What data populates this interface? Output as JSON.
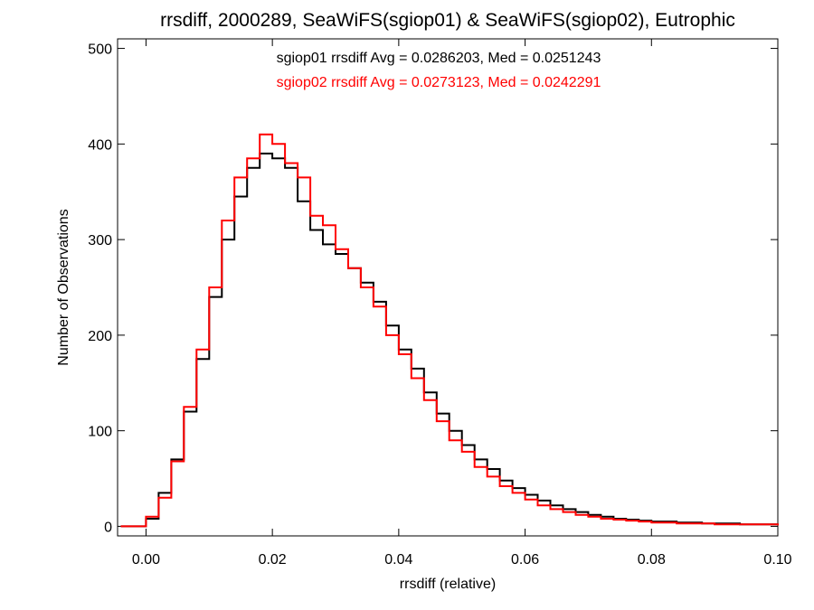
{
  "chart_data": {
    "type": "line",
    "step": true,
    "title": "rrsdiff, 2000289, SeaWiFS(sgiop01) & SeaWiFS(sgiop02), Eutrophic",
    "xlabel": "rrsdiff (relative)",
    "ylabel": "Number of Observations",
    "xlim": [
      -0.0045,
      0.1
    ],
    "ylim": [
      -10,
      510
    ],
    "xticks": [
      0.0,
      0.02,
      0.04,
      0.06,
      0.08,
      0.1
    ],
    "xtick_labels": [
      "0.00",
      "0.02",
      "0.04",
      "0.06",
      "0.08",
      "0.10"
    ],
    "yticks": [
      0,
      100,
      200,
      300,
      400,
      500
    ],
    "ytick_labels": [
      "0",
      "100",
      "200",
      "300",
      "400",
      "500"
    ],
    "grid": false,
    "legend": [
      {
        "text": "sgiop01 rrsdiff Avg = 0.0286203, Med = 0.0251243",
        "color": "#000000"
      },
      {
        "text": "sgiop02 rrsdiff Avg = 0.0273123, Med = 0.0242291",
        "color": "#ff0000"
      }
    ],
    "x": [
      -0.004,
      -0.002,
      0.0,
      0.002,
      0.004,
      0.006,
      0.008,
      0.01,
      0.012,
      0.014,
      0.016,
      0.018,
      0.02,
      0.022,
      0.024,
      0.026,
      0.028,
      0.03,
      0.032,
      0.034,
      0.036,
      0.038,
      0.04,
      0.042,
      0.044,
      0.046,
      0.048,
      0.05,
      0.052,
      0.054,
      0.056,
      0.058,
      0.06,
      0.062,
      0.064,
      0.066,
      0.068,
      0.07,
      0.072,
      0.074,
      0.076,
      0.078,
      0.08,
      0.082,
      0.084,
      0.086,
      0.088,
      0.09,
      0.092,
      0.094,
      0.096,
      0.098,
      0.1
    ],
    "series": [
      {
        "color": "#000000",
        "values": [
          0,
          0,
          8,
          35,
          70,
          120,
          175,
          240,
          300,
          345,
          375,
          390,
          385,
          375,
          340,
          310,
          295,
          285,
          270,
          255,
          235,
          210,
          185,
          165,
          140,
          118,
          100,
          85,
          70,
          60,
          48,
          40,
          33,
          27,
          22,
          18,
          15,
          12,
          10,
          8,
          7,
          6,
          5,
          5,
          4,
          4,
          3,
          3,
          3,
          2,
          2,
          2,
          2
        ]
      },
      {
        "color": "#ff0000",
        "values": [
          0,
          0,
          10,
          30,
          68,
          125,
          185,
          250,
          320,
          365,
          385,
          410,
          400,
          380,
          365,
          325,
          315,
          290,
          270,
          250,
          230,
          200,
          180,
          155,
          132,
          110,
          90,
          78,
          62,
          52,
          42,
          35,
          28,
          22,
          18,
          15,
          12,
          10,
          8,
          7,
          6,
          5,
          4,
          4,
          3,
          3,
          3,
          2,
          2,
          2,
          2,
          2,
          1
        ]
      }
    ]
  }
}
